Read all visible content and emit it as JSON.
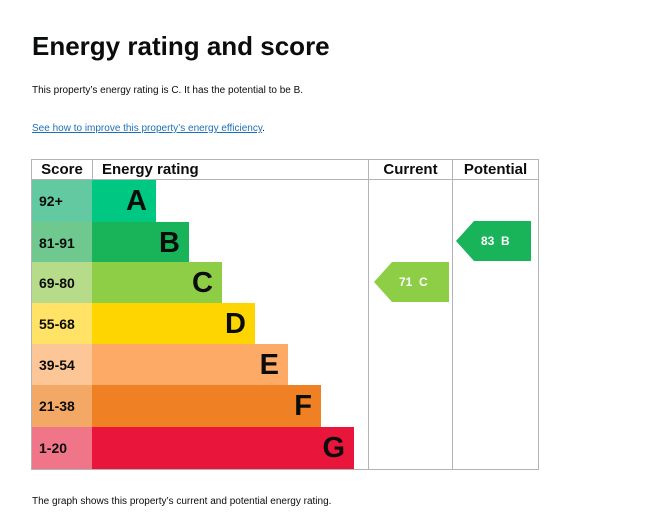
{
  "title": "Energy rating and score",
  "summary": "This property’s energy rating is C. It has the potential to be B.",
  "improve_link": "See how to improve this property’s energy efficiency",
  "improve_suffix": ".",
  "table": {
    "headers": {
      "score": "Score",
      "rating": "Energy rating",
      "current": "Current",
      "potential": "Potential"
    },
    "bands": [
      {
        "score": "92+",
        "letter": "A",
        "color": "#00c781",
        "score_bg": "#63c9a0"
      },
      {
        "score": "81-91",
        "letter": "B",
        "color": "#19b459",
        "score_bg": "#6fc98e"
      },
      {
        "score": "69-80",
        "letter": "C",
        "color": "#8dce46",
        "score_bg": "#b6dc8a"
      },
      {
        "score": "55-68",
        "letter": "D",
        "color": "#ffd500",
        "score_bg": "#ffe266"
      },
      {
        "score": "39-54",
        "letter": "E",
        "color": "#fcaa65",
        "score_bg": "#fdc696"
      },
      {
        "score": "21-38",
        "letter": "F",
        "color": "#ef8023",
        "score_bg": "#f4a865"
      },
      {
        "score": "1-20",
        "letter": "G",
        "color": "#e9153b",
        "score_bg": "#f07589"
      }
    ],
    "current": {
      "label": "71  C",
      "score": 71,
      "band": "C",
      "color": "#8dce46"
    },
    "potential": {
      "label": "83  B",
      "score": 83,
      "band": "B",
      "color": "#19b459"
    }
  },
  "footnote": "The graph shows this property’s current and potential energy rating."
}
